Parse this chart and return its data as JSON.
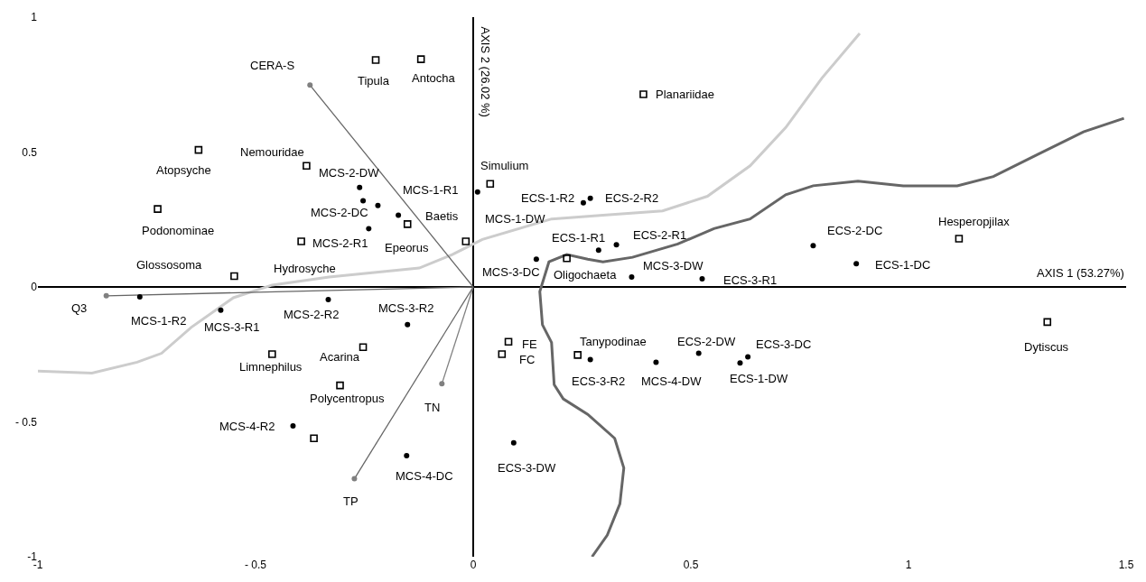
{
  "chart_data": {
    "type": "scatter",
    "xlabel": "AXIS 1 (53.27%)",
    "ylabel": "AXIS 2 (26.02 %)",
    "xlim": [
      -1,
      1.5
    ],
    "ylim": [
      -1,
      1
    ],
    "xticks": [
      -1,
      {
        "value": -0.5,
        "label": "- 0.5"
      },
      0,
      0.5,
      1,
      1.5
    ],
    "yticks": [
      -1,
      {
        "value": -0.5,
        "label": "- 0.5"
      },
      0,
      0.5,
      1
    ],
    "legend": false,
    "series": [
      {
        "type": "line",
        "color": "#cccccc",
        "marker": "none",
        "x": [
          -1.0,
          -0.876,
          -0.772,
          -0.716,
          -0.648,
          -0.551,
          -0.462,
          -0.331,
          -0.124,
          -0.048,
          0.021,
          0.18,
          0.298,
          0.435,
          0.538,
          0.636,
          0.718,
          0.801,
          0.888
        ],
        "values": [
          -0.312,
          -0.319,
          -0.279,
          -0.246,
          -0.15,
          -0.04,
          0.007,
          0.037,
          0.07,
          0.12,
          0.176,
          0.252,
          0.266,
          0.282,
          0.336,
          0.449,
          0.591,
          0.774,
          0.94
        ]
      },
      {
        "type": "line",
        "color": "#666666",
        "marker": "none",
        "x": [
          0.273,
          0.308,
          0.337,
          0.346,
          0.325,
          0.263,
          0.207,
          0.186,
          0.18,
          0.159,
          0.153,
          0.174,
          0.215,
          0.263,
          0.298,
          0.366,
          0.47,
          0.553,
          0.636,
          0.718,
          0.781,
          0.884,
          0.988,
          1.112,
          1.195,
          1.298,
          1.402,
          1.495
        ],
        "values": [
          -1.0,
          -0.92,
          -0.804,
          -0.671,
          -0.561,
          -0.472,
          -0.415,
          -0.362,
          -0.206,
          -0.14,
          -0.017,
          0.093,
          0.12,
          0.103,
          0.093,
          0.11,
          0.159,
          0.216,
          0.252,
          0.342,
          0.375,
          0.392,
          0.375,
          0.375,
          0.409,
          0.492,
          0.575,
          0.625
        ]
      },
      {
        "type": "line",
        "color": "#666666",
        "marker": "none",
        "x": [
          0,
          -0.843
        ],
        "values": [
          0,
          -0.033
        ]
      },
      {
        "type": "line",
        "color": "#666666",
        "marker": "none",
        "x": [
          0,
          -0.375
        ],
        "values": [
          0,
          0.748
        ]
      },
      {
        "type": "line",
        "color": "#808080",
        "marker": "none",
        "x": [
          0,
          -0.072
        ],
        "values": [
          0,
          -0.359
        ]
      },
      {
        "type": "line",
        "color": "#666666",
        "marker": "none",
        "x": [
          0,
          -0.273
        ],
        "values": [
          0,
          -0.711
        ]
      },
      {
        "type": "scatter",
        "color": "#808080",
        "marker": "circle",
        "x": [
          -0.843,
          -0.375,
          -0.072,
          -0.273
        ],
        "values": [
          -0.033,
          0.748,
          -0.359,
          -0.711
        ]
      },
      {
        "type": "scatter",
        "color": "#000000",
        "marker": "circle",
        "x": [
          -0.261,
          -0.253,
          -0.219,
          -0.172,
          -0.24,
          0.01,
          0.253,
          0.269,
          0.288,
          0.329,
          0.145,
          0.364,
          0.526,
          0.781,
          0.88,
          -0.766,
          -0.58,
          -0.333,
          -0.151,
          -0.414,
          -0.153,
          0.269,
          0.42,
          0.518,
          0.631,
          0.613,
          0.093
        ],
        "values": [
          0.369,
          0.319,
          0.302,
          0.266,
          0.216,
          0.352,
          0.312,
          0.329,
          0.136,
          0.156,
          0.103,
          0.037,
          0.03,
          0.153,
          0.086,
          -0.037,
          -0.086,
          -0.047,
          -0.14,
          -0.515,
          -0.625,
          -0.269,
          -0.279,
          -0.246,
          -0.259,
          -0.282,
          -0.578
        ]
      },
      {
        "type": "scatter",
        "color": "#000000",
        "marker": "square",
        "x": [
          -0.224,
          -0.12,
          0.391,
          -0.631,
          -0.383,
          -0.725,
          -0.151,
          -0.395,
          -0.549,
          -0.017,
          0.039,
          0.215,
          0.081,
          0.066,
          0.24,
          -0.462,
          -0.253,
          -0.306,
          -0.366,
          1.116,
          1.319
        ],
        "values": [
          0.841,
          0.844,
          0.714,
          0.508,
          0.449,
          0.289,
          0.233,
          0.169,
          0.04,
          0.169,
          0.382,
          0.106,
          -0.203,
          -0.249,
          -0.252,
          -0.249,
          -0.223,
          -0.365,
          -0.561,
          0.179,
          -0.13
        ]
      }
    ],
    "annotations": [
      {
        "text": "Tipula",
        "x": -0.224,
        "y": 0.841
      },
      {
        "text": "Antocha",
        "x": -0.12,
        "y": 0.844
      },
      {
        "text": "Planariidae",
        "x": 0.391,
        "y": 0.714
      },
      {
        "text": "CERA-S",
        "x": -0.375,
        "y": 0.748
      },
      {
        "text": "Atopsyche",
        "x": -0.631,
        "y": 0.508
      },
      {
        "text": "Nemouridae",
        "x": -0.383,
        "y": 0.449
      },
      {
        "text": "Podonominae",
        "x": -0.725,
        "y": 0.289
      },
      {
        "text": "Glossosoma",
        "x": -0.549,
        "y": 0.04
      },
      {
        "text": "Hydrosyche",
        "x": -0.395,
        "y": 0.169
      },
      {
        "text": "MCS-2-DW",
        "x": -0.261,
        "y": 0.369
      },
      {
        "text": "MCS-2-DC",
        "x": -0.253,
        "y": 0.319
      },
      {
        "text": "MCS-1-R1",
        "x": -0.172,
        "y": 0.266
      },
      {
        "text": "MCS-2-R1",
        "x": -0.24,
        "y": 0.216
      },
      {
        "text": "Baetis",
        "x": -0.017,
        "y": 0.169
      },
      {
        "text": "Epeorus",
        "x": -0.151,
        "y": 0.233
      },
      {
        "text": "Simulium",
        "x": 0.039,
        "y": 0.382
      },
      {
        "text": "MCS-1-DW",
        "x": 0.01,
        "y": 0.352
      },
      {
        "text": "ECS-1-R2",
        "x": 0.253,
        "y": 0.312
      },
      {
        "text": "ECS-2-R2",
        "x": 0.269,
        "y": 0.329
      },
      {
        "text": "ECS-1-R1",
        "x": 0.288,
        "y": 0.136
      },
      {
        "text": "ECS-2-R1",
        "x": 0.329,
        "y": 0.156
      },
      {
        "text": "MCS-3-DC",
        "x": 0.145,
        "y": 0.103
      },
      {
        "text": "Oligochaeta",
        "x": 0.215,
        "y": 0.106
      },
      {
        "text": "MCS-3-DW",
        "x": 0.364,
        "y": 0.037
      },
      {
        "text": "ECS-3-R1",
        "x": 0.526,
        "y": 0.03
      },
      {
        "text": "ECS-2-DC",
        "x": 0.781,
        "y": 0.153
      },
      {
        "text": "Hesperopjilax",
        "x": 1.116,
        "y": 0.179
      },
      {
        "text": "ECS-1-DC",
        "x": 0.88,
        "y": 0.086
      },
      {
        "text": "Q3",
        "x": -0.843,
        "y": -0.033
      },
      {
        "text": "MCS-1-R2",
        "x": -0.766,
        "y": -0.037
      },
      {
        "text": "MCS-3-R1",
        "x": -0.58,
        "y": -0.086
      },
      {
        "text": "MCS-2-R2",
        "x": -0.333,
        "y": -0.047
      },
      {
        "text": "MCS-3-R2",
        "x": -0.151,
        "y": -0.14
      },
      {
        "text": "Limnephilus",
        "x": -0.462,
        "y": -0.249
      },
      {
        "text": "Acarina",
        "x": -0.253,
        "y": -0.223
      },
      {
        "text": "Polycentropus",
        "x": -0.306,
        "y": -0.365
      },
      {
        "text": "TN",
        "x": -0.072,
        "y": -0.359
      },
      {
        "text": "MCS-4-R2",
        "x": -0.414,
        "y": -0.515
      },
      {
        "text": "TP",
        "x": -0.273,
        "y": -0.711
      },
      {
        "text": "MCS-4-DC",
        "x": -0.153,
        "y": -0.625
      },
      {
        "text": "FE",
        "x": 0.081,
        "y": -0.203
      },
      {
        "text": "FC",
        "x": 0.066,
        "y": -0.249
      },
      {
        "text": "Tanypodinae",
        "x": 0.24,
        "y": -0.252
      },
      {
        "text": "ECS-2-DW",
        "x": 0.518,
        "y": -0.246
      },
      {
        "text": "ECS-3-DC",
        "x": 0.631,
        "y": -0.259
      },
      {
        "text": "ECS-3-R2",
        "x": 0.269,
        "y": -0.269
      },
      {
        "text": "MCS-4-DW",
        "x": 0.42,
        "y": -0.279
      },
      {
        "text": "ECS-1-DW",
        "x": 0.613,
        "y": -0.282
      },
      {
        "text": "ECS-3-DW",
        "x": 0.093,
        "y": -0.578
      },
      {
        "text": "Dytiscus",
        "x": 1.319,
        "y": -0.13
      }
    ]
  }
}
